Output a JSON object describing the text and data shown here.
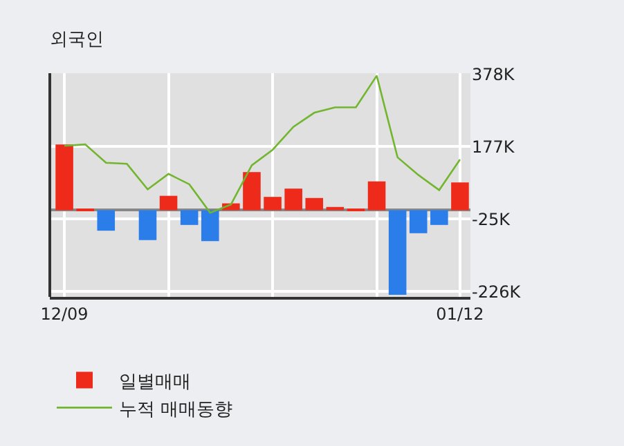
{
  "chart_data": {
    "type": "bar",
    "title": "외국인",
    "categories": [
      "12/09",
      null,
      null,
      null,
      null,
      null,
      null,
      null,
      null,
      null,
      null,
      null,
      null,
      null,
      null,
      null,
      null,
      null,
      null,
      "01/12"
    ],
    "series": [
      {
        "name": "일별매매",
        "colors": [
          "#ee2a1a",
          "#ee2a1a",
          "#2b7de9",
          "#ee2a1a",
          "#2b7de9",
          "#ee2a1a",
          "#2b7de9",
          "#2b7de9",
          "#ee2a1a",
          "#ee2a1a",
          "#ee2a1a",
          "#ee2a1a",
          "#ee2a1a",
          "#ee2a1a",
          "#ee2a1a",
          "#ee2a1a",
          "#2b7de9",
          "#2b7de9",
          "#2b7de9",
          "#ee2a1a"
        ],
        "values": [
          183,
          3,
          -57,
          0,
          -83,
          40,
          -41,
          -86,
          19,
          106,
          37,
          60,
          34,
          9,
          3,
          80,
          -235,
          -64,
          -41,
          77
        ]
      },
      {
        "name": "누적 매매동향",
        "type": "line",
        "color": "#72b52e",
        "values": [
          179,
          183,
          132,
          129,
          58,
          101,
          72,
          -7,
          16,
          125,
          168,
          232,
          271,
          286,
          286,
          374,
          147,
          98,
          56,
          141
        ]
      }
    ],
    "ylim": [
      -241,
      381
    ],
    "yticks": [
      {
        "value": 378,
        "label": "378K"
      },
      {
        "value": 177,
        "label": "177K"
      },
      {
        "value": -25,
        "label": "-25K"
      },
      {
        "value": -226,
        "label": "-226K"
      }
    ],
    "grid": true,
    "legend": "bottom"
  }
}
